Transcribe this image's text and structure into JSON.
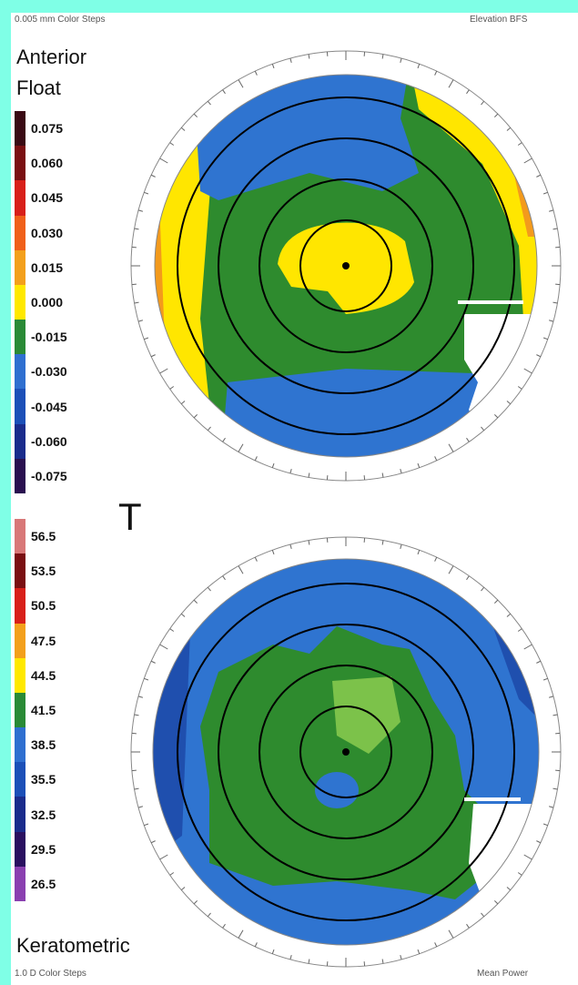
{
  "header": {
    "top_left_caption": "0.005 mm Color Steps",
    "top_right_caption": "Elevation BFS",
    "map_title_line1": "Anterior",
    "map_title_line2": "Float"
  },
  "elevation_scale": {
    "labels": [
      "0.075",
      "0.060",
      "0.045",
      "0.030",
      "0.015",
      "0.000",
      "-0.015",
      "-0.030",
      "-0.045",
      "-0.060",
      "-0.075"
    ],
    "colors": [
      "#3a0a14",
      "#7a0f12",
      "#d8201a",
      "#f0601a",
      "#f3a01c",
      "#ffe800",
      "#2a8a36",
      "#2f6fd0",
      "#1c50b8",
      "#1a2c8c",
      "#2a1050"
    ]
  },
  "marker": {
    "label": "T"
  },
  "keratometric_scale": {
    "labels": [
      "56.5",
      "53.5",
      "50.5",
      "47.5",
      "44.5",
      "41.5",
      "38.5",
      "35.5",
      "32.5",
      "29.5",
      "26.5"
    ],
    "colors": [
      "#d87878",
      "#7a0f12",
      "#d8201a",
      "#f3a01c",
      "#ffe800",
      "#2a8a36",
      "#2f6fd0",
      "#1c50b8",
      "#1a2c8c",
      "#2a1060",
      "#8a40b0"
    ]
  },
  "footer": {
    "map_title": "Keratometric",
    "bottom_left_caption": "1.0 D Color Steps",
    "bottom_right_caption": "Mean Power"
  },
  "map_colors": {
    "green": "#2e8b2e",
    "blue": "#2f74d0",
    "deep_blue": "#1f4fae",
    "yellow": "#ffe600",
    "orange": "#f39a1c",
    "red_orange": "#e8601a",
    "light_green": "#7cc24a",
    "ring": "#000000"
  }
}
